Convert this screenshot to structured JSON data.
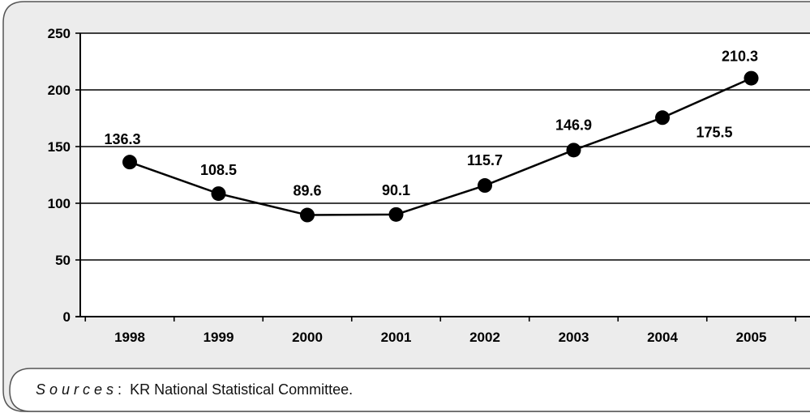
{
  "chart_data": {
    "type": "line",
    "x": [
      "1998",
      "1999",
      "2000",
      "2001",
      "2002",
      "2003",
      "2004",
      "2005"
    ],
    "series": [
      {
        "values": [
          136.3,
          108.5,
          89.6,
          90.1,
          115.7,
          146.9,
          175.5,
          210.3
        ],
        "labels": [
          "136.3",
          "108.5",
          "89.6",
          "90.1",
          "115.7",
          "146.9",
          "175.5",
          "210.3"
        ]
      }
    ],
    "ylim": [
      0,
      250
    ],
    "yticks": [
      0,
      50,
      100,
      150,
      200,
      250
    ],
    "ytick_labels": [
      "0",
      "50",
      "100",
      "150",
      "200",
      "250"
    ],
    "grid": true,
    "legend": "none",
    "title": "",
    "xlabel": "",
    "ylabel": ""
  },
  "source": {
    "label": "Sources",
    "separator": ":",
    "text": "KR National Statistical Committee."
  },
  "colors": {
    "frame_fill": "#ececec",
    "frame_border": "#555555",
    "plot_fill": "#ffffff",
    "line": "#000000",
    "marker": "#000000",
    "grid": "#000000"
  }
}
